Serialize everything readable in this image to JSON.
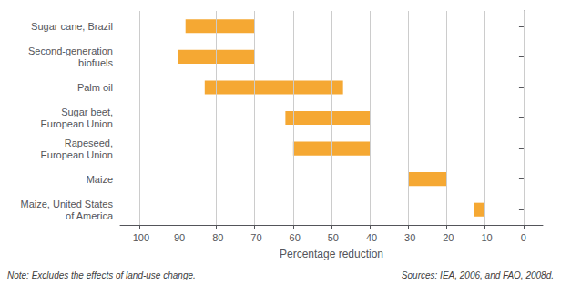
{
  "chart_data": {
    "type": "bar",
    "orientation": "horizontal",
    "categories": [
      "Sugar cane, Brazil",
      "Second-generation\nbiofuels",
      "Palm oil",
      "Sugar beet,\nEuropean Union",
      "Rapeseed,\nEuropean Union",
      "Maize",
      "Maize, United States\nof America"
    ],
    "starts": [
      -88,
      -90,
      -83,
      -62,
      -60,
      -30,
      -13
    ],
    "ends": [
      -70,
      -70,
      -47,
      -40,
      -40,
      -20,
      -10
    ],
    "color": "#F5A833",
    "xlabel": "Percentage reduction",
    "xlim": [
      -105,
      5
    ],
    "xticks": [
      -100,
      -90,
      -80,
      -70,
      -60,
      -50,
      -40,
      -30,
      -20,
      -10,
      0
    ],
    "grid": true,
    "annotations": [
      "Note: Excludes the effects of land-use change.",
      "Sources: IEA, 2006, and FAO, 2008d."
    ]
  }
}
